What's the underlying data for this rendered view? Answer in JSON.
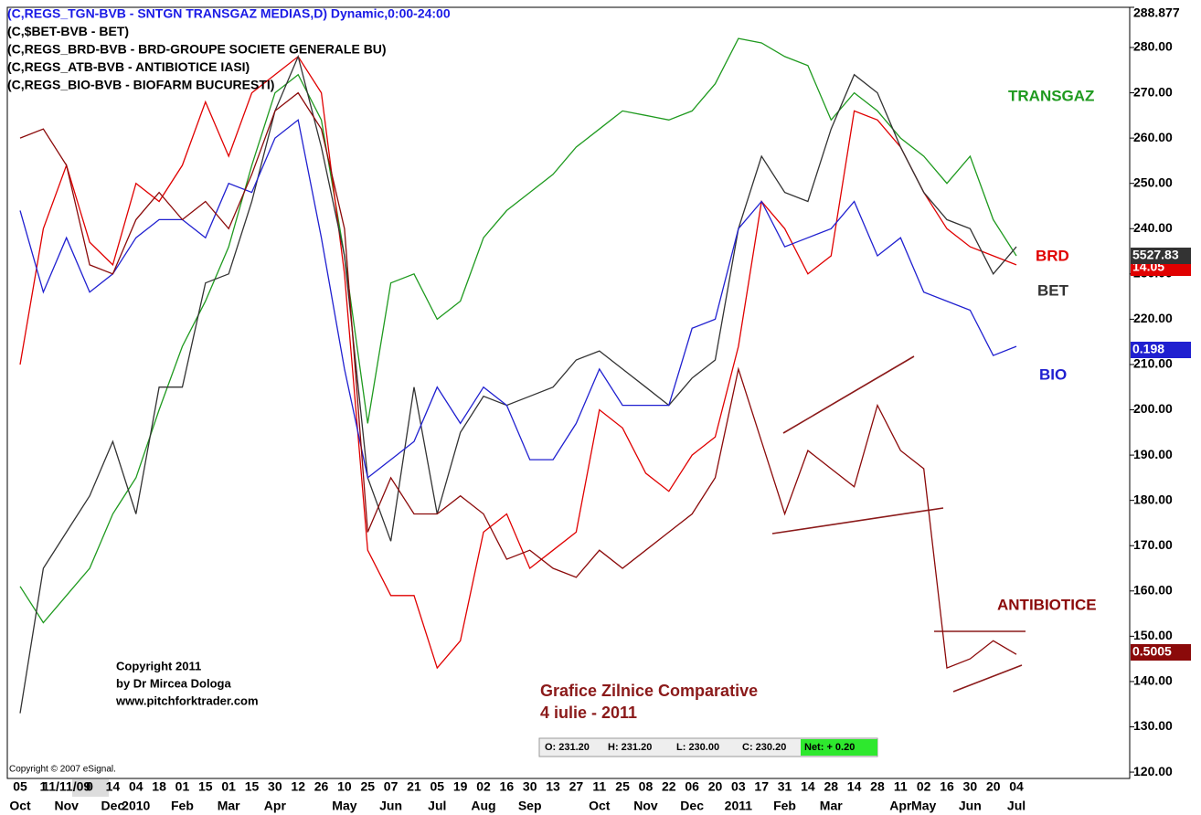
{
  "chart_data": {
    "type": "line",
    "legend_lines": [
      {
        "text": "(C,REGS_TGN-BVB - SNTGN TRANSGAZ MEDIAS,D) Dynamic,0:00-24:00",
        "color": "#1a1ae6"
      },
      {
        "text": "(C,$BET-BVB - BET)",
        "color": "#000000"
      },
      {
        "text": "(C,REGS_BRD-BVB - BRD-GROUPE SOCIETE GENERALE BU)",
        "color": "#000000"
      },
      {
        "text": "(C,REGS_ATB-BVB - ANTIBIOTICE IASI)",
        "color": "#000000"
      },
      {
        "text": "(C,REGS_BIO-BVB - BIOFARM BUCURESTI)",
        "color": "#000000"
      }
    ],
    "categories": [
      "05",
      "1",
      "11/11/09",
      "0",
      "14",
      "04",
      "18",
      "01",
      "15",
      "01",
      "15",
      "30",
      "12",
      "26",
      "10",
      "25",
      "07",
      "21",
      "05",
      "19",
      "02",
      "16",
      "30",
      "13",
      "27",
      "11",
      "25",
      "08",
      "22",
      "06",
      "20",
      "03",
      "17",
      "31",
      "14",
      "28",
      "14",
      "28",
      "11",
      "02",
      "16",
      "30",
      "20",
      "04"
    ],
    "x_month_labels": [
      "Oct",
      null,
      "Nov",
      null,
      "Dec",
      "2010",
      null,
      "Feb",
      null,
      "Mar",
      null,
      "Apr",
      null,
      null,
      "May",
      null,
      "Jun",
      null,
      "Jul",
      null,
      "Aug",
      null,
      "Sep",
      null,
      null,
      "Oct",
      null,
      "Nov",
      null,
      "Dec",
      null,
      "2011",
      null,
      "Feb",
      null,
      "Mar",
      null,
      null,
      "Apr",
      "May",
      null,
      "Jun",
      null,
      "Jul"
    ],
    "series": [
      {
        "name": "TRANSGAZ",
        "color": "#1f9a1f",
        "values": [
          161,
          153,
          159,
          165,
          177,
          185,
          200,
          214,
          224,
          236,
          254,
          270,
          274,
          264,
          234,
          197,
          228,
          230,
          220,
          224,
          238,
          244,
          248,
          252,
          258,
          262,
          266,
          265,
          264,
          266,
          272,
          282,
          281,
          278,
          276,
          264,
          270,
          266,
          260,
          256,
          250,
          256,
          242,
          234
        ]
      },
      {
        "name": "BRD",
        "color": "#e00000",
        "last_label": "14.05",
        "values": [
          210,
          240,
          254,
          237,
          232,
          250,
          246,
          254,
          268,
          256,
          270,
          274,
          278,
          270,
          230,
          169,
          159,
          159,
          143,
          149,
          173,
          177,
          165,
          169,
          173,
          200,
          196,
          186,
          182,
          190,
          194,
          214,
          246,
          240,
          230,
          234,
          266,
          264,
          258,
          248,
          240,
          236,
          234,
          232
        ]
      },
      {
        "name": "BET",
        "color": "#333333",
        "last_label": "5527.83",
        "values": [
          133,
          165,
          173,
          181,
          193,
          177,
          205,
          205,
          228,
          230,
          246,
          266,
          278,
          258,
          234,
          185,
          171,
          205,
          177,
          195,
          203,
          201,
          203,
          205,
          211,
          213,
          209,
          205,
          201,
          207,
          211,
          240,
          256,
          248,
          246,
          262,
          274,
          270,
          258,
          248,
          242,
          240,
          230,
          236
        ]
      },
      {
        "name": "BIO",
        "color": "#2020d0",
        "last_label": "0.198",
        "values": [
          244,
          226,
          238,
          226,
          230,
          238,
          242,
          242,
          238,
          250,
          248,
          260,
          264,
          238,
          209,
          185,
          189,
          193,
          205,
          197,
          205,
          201,
          189,
          189,
          197,
          209,
          201,
          201,
          201,
          218,
          220,
          240,
          246,
          236,
          238,
          240,
          246,
          234,
          238,
          226,
          224,
          222,
          212,
          214
        ]
      },
      {
        "name": "ANTIBIOTICE",
        "color": "#8b0a0a",
        "last_label": "0.5005",
        "values": [
          260,
          262,
          254,
          232,
          230,
          242,
          248,
          242,
          246,
          240,
          252,
          266,
          270,
          262,
          240,
          173,
          185,
          177,
          177,
          181,
          177,
          167,
          169,
          165,
          163,
          169,
          165,
          169,
          173,
          177,
          185,
          209,
          193,
          177,
          191,
          187,
          183,
          201,
          191,
          187,
          143,
          145,
          149,
          146
        ]
      }
    ],
    "ylim": [
      118.6,
      288.877
    ],
    "yticks": [
      {
        "value": 120,
        "label": "120.00"
      },
      {
        "value": 130,
        "label": "130.00"
      },
      {
        "value": 140,
        "label": "140.00"
      },
      {
        "value": 150,
        "label": "150.00"
      },
      {
        "value": 160,
        "label": "160.00"
      },
      {
        "value": 170,
        "label": "170.00"
      },
      {
        "value": 180,
        "label": "180.00"
      },
      {
        "value": 190,
        "label": "190.00"
      },
      {
        "value": 200,
        "label": "200.00"
      },
      {
        "value": 210,
        "label": "210.00"
      },
      {
        "value": 220,
        "label": "220.00"
      },
      {
        "value": 230,
        "label": "230.00"
      },
      {
        "value": 240,
        "label": "240.00"
      },
      {
        "value": 250,
        "label": "250.00"
      },
      {
        "value": 260,
        "label": "260.00"
      },
      {
        "value": 270,
        "label": "270.00"
      },
      {
        "value": 280,
        "label": "280.00"
      },
      288.877
    ],
    "grid": false,
    "copyright_lines": [
      "Copyright 2011",
      "by Dr Mircea Dologa",
      "www.pitchforktrader.com"
    ],
    "title_lines": [
      "Grafice Zilnice Comparative",
      "4 iulie -  2011"
    ],
    "quote_box": [
      "O: 231.20",
      "H: 231.20",
      "L: 230.00",
      "C: 230.20",
      "Net: + 0.20"
    ],
    "source": "Copyright © 2007 eSignal."
  }
}
